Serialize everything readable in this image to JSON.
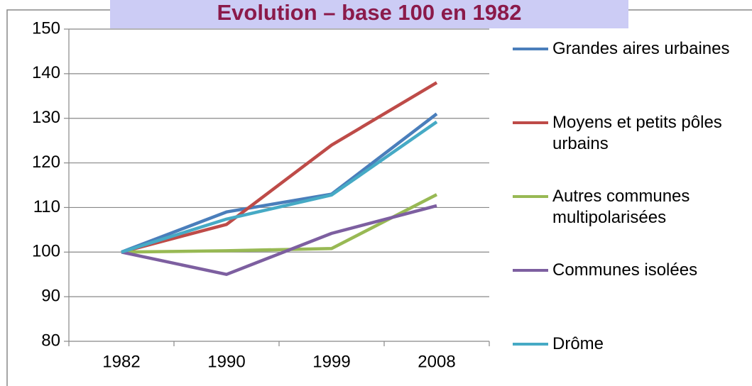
{
  "chart_data": {
    "type": "line",
    "title": "Evolution – base 100 en 1982",
    "categories": [
      "1982",
      "1990",
      "1999",
      "2008"
    ],
    "series": [
      {
        "name": "Grandes aires urbaines",
        "color": "#4a7ebb",
        "values": [
          100,
          109,
          113,
          131
        ]
      },
      {
        "name": "Moyens et petits pôles urbains",
        "color": "#be4b48",
        "values": [
          100,
          106.2,
          124,
          138
        ]
      },
      {
        "name": "Autres communes multipolarisées",
        "color": "#98b954",
        "values": [
          100,
          100.3,
          100.8,
          112.9
        ]
      },
      {
        "name": "Communes isolées",
        "color": "#7d5fa0",
        "values": [
          100,
          95,
          104.2,
          110.4
        ]
      },
      {
        "name": "Drôme",
        "color": "#46aac5",
        "values": [
          100,
          107.4,
          112.8,
          129.2
        ]
      }
    ],
    "ylim": [
      80,
      150
    ],
    "yticks": [
      80,
      90,
      100,
      110,
      120,
      130,
      140,
      150
    ],
    "grid": true
  }
}
